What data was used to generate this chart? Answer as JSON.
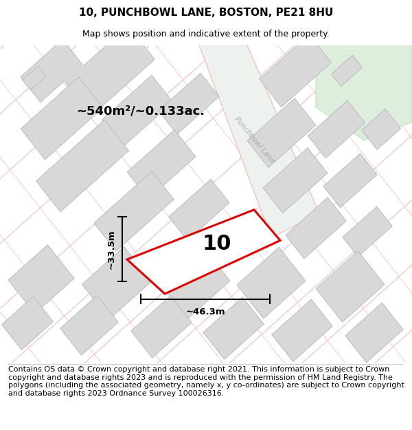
{
  "title": "10, PUNCHBOWL LANE, BOSTON, PE21 8HU",
  "subtitle": "Map shows position and indicative extent of the property.",
  "footer": "Contains OS data © Crown copyright and database right 2021. This information is subject to Crown copyright and database rights 2023 and is reproduced with the permission of HM Land Registry. The polygons (including the associated geometry, namely x, y co-ordinates) are subject to Crown copyright and database rights 2023 Ordnance Survey 100026316.",
  "map_bg": "#ffffff",
  "area_label": "~540m²/~0.133ac.",
  "plot_number": "10",
  "width_label": "~46.3m",
  "height_label": "~33.5m",
  "main_plot_color": "#dd0000",
  "building_fill": "#d8d8d8",
  "building_stroke": "#bbbbbb",
  "road_stroke": "#f0b8b8",
  "road_label": "Punchbowl Lane",
  "road_label_color": "#aaaaaa",
  "green_fill": "#ddeedd",
  "green_stroke": "#bbddbb",
  "footer_fontsize": 8.0,
  "title_fontsize": 11,
  "subtitle_fontsize": 9
}
